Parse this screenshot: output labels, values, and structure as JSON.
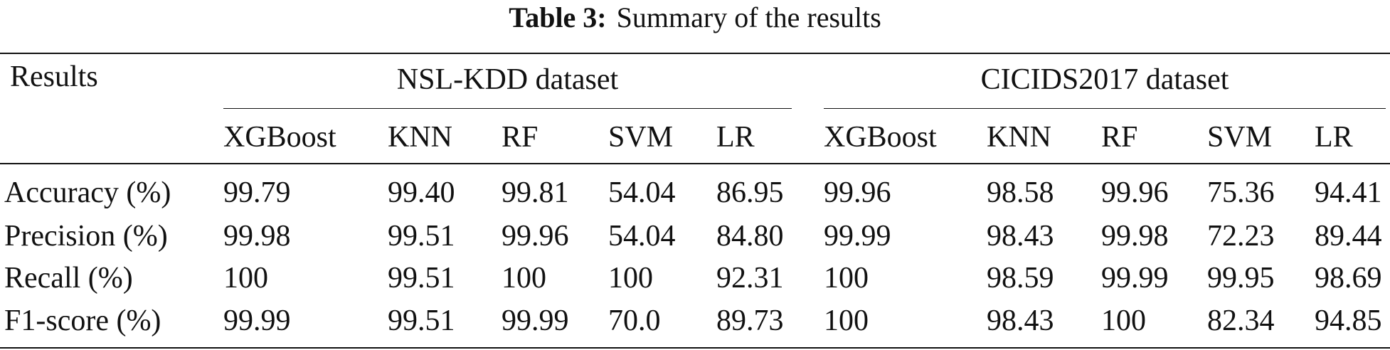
{
  "title": {
    "label": "Table 3:",
    "text": "Summary of the results"
  },
  "table": {
    "corner": "Results",
    "groups": [
      {
        "label": "NSL-KDD dataset",
        "columns": [
          "XGBoost",
          "KNN",
          "RF",
          "SVM",
          "LR"
        ]
      },
      {
        "label": "CICIDS2017 dataset",
        "columns": [
          "XGBoost",
          "KNN",
          "RF",
          "SVM",
          "LR"
        ]
      }
    ],
    "rows": [
      {
        "label": "Accuracy (%)",
        "values": [
          "99.79",
          "99.40",
          "99.81",
          "54.04",
          "86.95",
          "99.96",
          "98.58",
          "99.96",
          "75.36",
          "94.41"
        ]
      },
      {
        "label": "Precision (%)",
        "values": [
          "99.98",
          "99.51",
          "99.96",
          "54.04",
          "84.80",
          "99.99",
          "98.43",
          "99.98",
          "72.23",
          "89.44"
        ]
      },
      {
        "label": "Recall (%)",
        "values": [
          "100",
          "99.51",
          "100",
          "100",
          "92.31",
          "100",
          "98.59",
          "99.99",
          "99.95",
          "98.69"
        ]
      },
      {
        "label": "F1-score (%)",
        "values": [
          "99.99",
          "99.51",
          "99.99",
          "70.0",
          "89.73",
          "100",
          "98.43",
          "100",
          "82.34",
          "94.85"
        ]
      }
    ]
  }
}
